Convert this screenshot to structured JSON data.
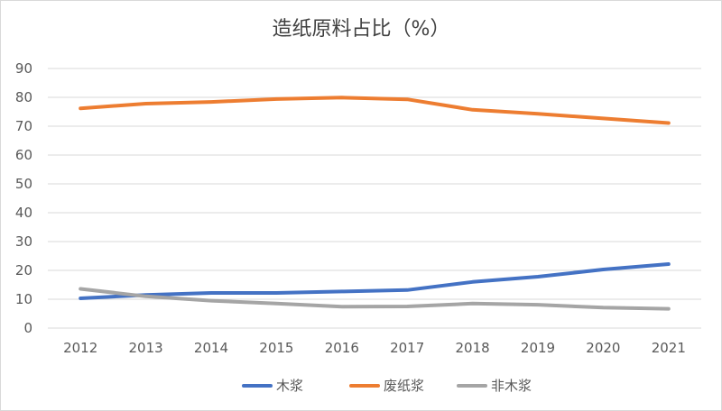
{
  "chart_data": {
    "type": "line",
    "title": "造纸原料占比（%）",
    "xlabel": "",
    "ylabel": "",
    "x": [
      "2012",
      "2013",
      "2014",
      "2015",
      "2016",
      "2017",
      "2018",
      "2019",
      "2020",
      "2021"
    ],
    "ylim": [
      0,
      90
    ],
    "yticks": [
      0,
      10,
      20,
      30,
      40,
      50,
      60,
      70,
      80,
      90
    ],
    "grid": true,
    "legend": "bottom",
    "series": [
      {
        "name": "木浆",
        "color": "#4472C4",
        "values": [
          10.3,
          11.5,
          12.2,
          12.2,
          12.7,
          13.2,
          16.0,
          17.8,
          20.3,
          22.2
        ]
      },
      {
        "name": "废纸浆",
        "color": "#ED7D31",
        "values": [
          76.2,
          77.8,
          78.4,
          79.4,
          79.9,
          79.3,
          75.7,
          74.3,
          72.7,
          71.1
        ]
      },
      {
        "name": "非木浆",
        "color": "#A5A5A5",
        "values": [
          13.6,
          11.0,
          9.5,
          8.5,
          7.4,
          7.5,
          8.5,
          8.1,
          7.1,
          6.7
        ]
      }
    ]
  }
}
